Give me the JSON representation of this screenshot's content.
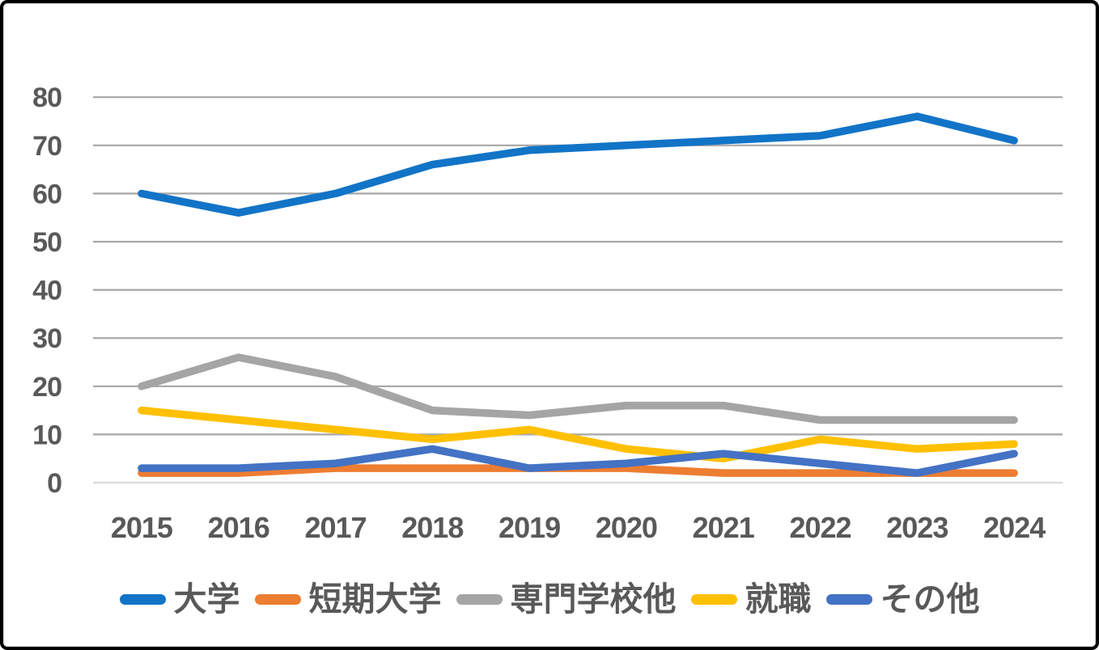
{
  "chart_data": {
    "type": "line",
    "title": "",
    "categories": [
      "2015",
      "2016",
      "2017",
      "2018",
      "2019",
      "2020",
      "2021",
      "2022",
      "2023",
      "2024"
    ],
    "series": [
      {
        "name": "大学",
        "color": "#1274C7",
        "values": [
          60,
          56,
          60,
          66,
          69,
          70,
          71,
          72,
          76,
          71
        ]
      },
      {
        "name": "短期大学",
        "color": "#ED7D31",
        "values": [
          2,
          2,
          3,
          3,
          3,
          3,
          2,
          2,
          2,
          2
        ]
      },
      {
        "name": "専門学校他",
        "color": "#A5A5A5",
        "values": [
          20,
          26,
          22,
          15,
          14,
          16,
          16,
          13,
          13,
          13
        ]
      },
      {
        "name": "就職",
        "color": "#FFC000",
        "values": [
          15,
          13,
          11,
          9,
          11,
          7,
          5,
          9,
          7,
          8
        ]
      },
      {
        "name": "その他",
        "color": "#4472C4",
        "values": [
          3,
          3,
          4,
          7,
          3,
          4,
          6,
          4,
          2,
          6
        ]
      }
    ],
    "ylim": [
      0,
      80
    ],
    "yticks": [
      0,
      10,
      20,
      30,
      40,
      50,
      60,
      70,
      80
    ],
    "grid": "horizontal-major",
    "legend_position": "bottom",
    "colors": {
      "gridline": "#A6A6A6",
      "axis_line": "#D9D9D9",
      "tick_label": "#595959",
      "legend_label": "#595959",
      "background": "#FFFFFF",
      "frame_border": "#000000"
    }
  }
}
